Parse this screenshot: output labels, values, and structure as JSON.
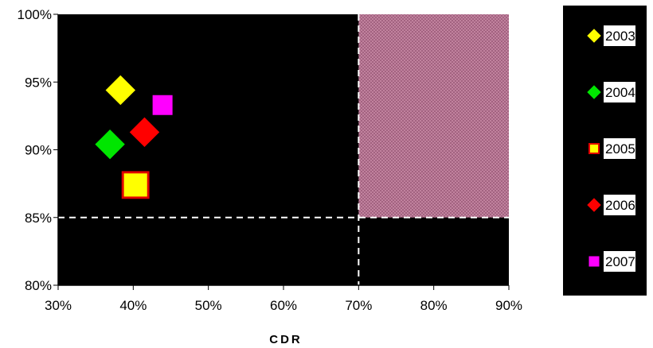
{
  "chart_data": {
    "type": "scatter",
    "title": "",
    "xlabel": "CDR",
    "ylabel": "",
    "xlim": [
      0.3,
      0.9
    ],
    "ylim": [
      0.8,
      1.0
    ],
    "x_ticks": [
      "30%",
      "40%",
      "50%",
      "60%",
      "70%",
      "80%",
      "90%"
    ],
    "y_ticks": [
      "80%",
      "85%",
      "90%",
      "95%",
      "100%"
    ],
    "x_tick_values": [
      0.3,
      0.4,
      0.5,
      0.6,
      0.7,
      0.8,
      0.9
    ],
    "y_tick_values": [
      0.8,
      0.85,
      0.9,
      0.95,
      1.0
    ],
    "plot_background": "#000000",
    "grid": false,
    "reference_lines": {
      "x": 0.7,
      "y": 0.85,
      "style": "dashed",
      "color": "#ffffff"
    },
    "highlight_region": {
      "x_range": [
        0.7,
        0.9
      ],
      "y_range": [
        0.85,
        1.0
      ],
      "color": "#b06a8a",
      "pattern": "crosshatch"
    },
    "legend_position": "right",
    "series": [
      {
        "name": "2003",
        "marker": "diamond",
        "color": "#ffff00",
        "border": "#ffff00",
        "x": 0.383,
        "y": 0.944
      },
      {
        "name": "2004",
        "marker": "diamond",
        "color": "#00e600",
        "border": "#00e600",
        "x": 0.369,
        "y": 0.904
      },
      {
        "name": "2005",
        "marker": "square",
        "color": "#ffff00",
        "border": "#e00000",
        "x": 0.403,
        "y": 0.874
      },
      {
        "name": "2006",
        "marker": "diamond",
        "color": "#ff0000",
        "border": "#ff0000",
        "x": 0.415,
        "y": 0.913
      },
      {
        "name": "2007",
        "marker": "square",
        "color": "#ff00ff",
        "border": "#ff00ff",
        "x": 0.439,
        "y": 0.933
      }
    ]
  }
}
